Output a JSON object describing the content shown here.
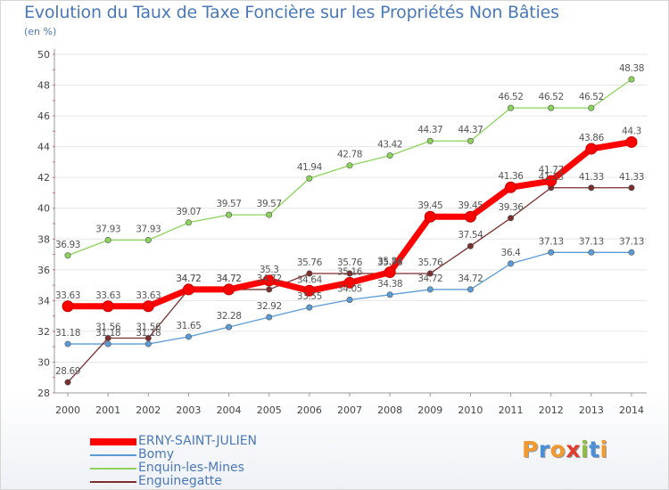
{
  "title": "Evolution du Taux de Taxe Foncière sur les Propriétés Non Bâties",
  "unit": "(en %)",
  "logo": "Proxiti",
  "chart_data": {
    "type": "line",
    "x": [
      "2000",
      "2001",
      "2002",
      "2003",
      "2004",
      "2005",
      "2006",
      "2007",
      "2008",
      "2009",
      "2010",
      "2011",
      "2012",
      "2013",
      "2014"
    ],
    "ylim": [
      28,
      50
    ],
    "yticks": [
      28,
      30,
      32,
      34,
      36,
      38,
      40,
      42,
      44,
      46,
      48,
      50
    ],
    "grid": "horizontal",
    "legend_position": "bottom-left",
    "series": [
      {
        "name": "ERNY-SAINT-JULIEN",
        "color": "#ff0000",
        "values": [
          33.63,
          33.63,
          33.63,
          34.72,
          34.72,
          35.3,
          34.64,
          35.16,
          35.84,
          39.45,
          39.45,
          41.36,
          41.77,
          43.86,
          44.3
        ],
        "labels": [
          "33.63",
          "33.63",
          "33.63",
          "34.72",
          "34.72",
          "35.3",
          "34.64",
          "35.16",
          "35.84",
          "39.45",
          "39.45",
          "41.36",
          "41.77",
          "43.86",
          "44.3"
        ]
      },
      {
        "name": "Bomy",
        "color": "#5b9bd5",
        "values": [
          31.18,
          31.18,
          31.18,
          31.65,
          32.28,
          32.92,
          33.55,
          34.05,
          34.38,
          34.72,
          34.72,
          36.4,
          37.13,
          37.13,
          37.13
        ],
        "labels": [
          "31.18",
          "31.18",
          "31.18",
          "31.65",
          "32.28",
          "32.92",
          "33.55",
          "34.05",
          "34.38",
          "34.72",
          "34.72",
          "36.4",
          "37.13",
          "37.13",
          "37.13"
        ]
      },
      {
        "name": "Enquin-les-Mines",
        "color": "#8cd35c",
        "values": [
          36.93,
          37.93,
          37.93,
          39.07,
          39.57,
          39.57,
          41.94,
          42.78,
          43.42,
          44.37,
          44.37,
          46.52,
          46.52,
          46.52,
          48.38
        ],
        "labels": [
          "36.93",
          "37.93",
          "37.93",
          "39.07",
          "39.57",
          "39.57",
          "41.94",
          "42.78",
          "43.42",
          "44.37",
          "44.37",
          "46.52",
          "46.52",
          "46.52",
          "48.38"
        ]
      },
      {
        "name": "Enguinegatte",
        "color": "#7a2e2e",
        "values": [
          28.69,
          31.56,
          31.56,
          34.72,
          34.72,
          34.72,
          35.76,
          35.76,
          35.76,
          35.76,
          37.54,
          39.36,
          41.33,
          41.33,
          41.33
        ],
        "labels": [
          "28.69",
          "31.56",
          "31.56",
          "34.72",
          "34.72",
          "34.72",
          "35.76",
          "35.76",
          "35.76",
          "35.76",
          "37.54",
          "39.36",
          "41.33",
          "41.33",
          "41.33"
        ]
      }
    ]
  },
  "logo_colors": [
    "#f29a2e",
    "#4a90d9",
    "#f29a2e",
    "#e23b2b",
    "#8cbf3f",
    "#4a90d9",
    "#f29a2e"
  ]
}
